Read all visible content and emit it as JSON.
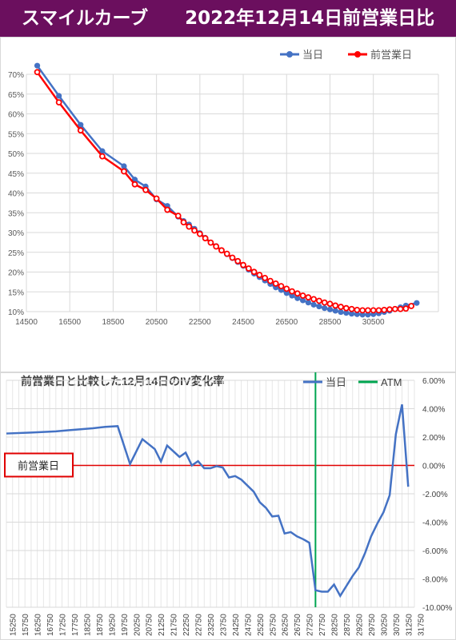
{
  "header": {
    "title": "スマイルカーブ　　2022年12月14日前営業日比",
    "bg_color": "#6b0f5e"
  },
  "chart_data": [
    {
      "type": "line",
      "title": "",
      "legend_position": "top-right",
      "grid": true,
      "xlim": [
        14500,
        33500
      ],
      "ylim": [
        0.15,
        0.7
      ],
      "x_ticks": [
        "14500",
        "16500",
        "18500",
        "20500",
        "22500",
        "24500",
        "26500",
        "28500",
        "30500"
      ],
      "y_ticks": [
        "10%",
        "15%",
        "20%",
        "25%",
        "30%",
        "35%",
        "40%",
        "45%",
        "50%",
        "55%",
        "60%",
        "65%",
        "70%"
      ],
      "series": [
        {
          "name": "当日",
          "color": "#4472c4",
          "points": [
            [
              15000,
              0.72
            ],
            [
              16000,
              0.65
            ],
            [
              17000,
              0.583
            ],
            [
              18000,
              0.522
            ],
            [
              19000,
              0.487
            ],
            [
              19500,
              0.456
            ],
            [
              20000,
              0.44
            ],
            [
              20500,
              0.41
            ],
            [
              21000,
              0.395
            ],
            [
              21500,
              0.37
            ],
            [
              21750,
              0.36
            ],
            [
              22000,
              0.352
            ],
            [
              22250,
              0.342
            ],
            [
              22500,
              0.332
            ],
            [
              22750,
              0.321
            ],
            [
              23000,
              0.31
            ],
            [
              23250,
              0.302
            ],
            [
              23500,
              0.292
            ],
            [
              23750,
              0.283
            ],
            [
              24000,
              0.274
            ],
            [
              24250,
              0.265
            ],
            [
              24500,
              0.256
            ],
            [
              24750,
              0.247
            ],
            [
              25000,
              0.238
            ],
            [
              25250,
              0.23
            ],
            [
              25500,
              0.222
            ],
            [
              25750,
              0.214
            ],
            [
              26000,
              0.206
            ],
            [
              26250,
              0.2
            ],
            [
              26500,
              0.193
            ],
            [
              26750,
              0.187
            ],
            [
              27000,
              0.181
            ],
            [
              27250,
              0.176
            ],
            [
              27500,
              0.171
            ],
            [
              27750,
              0.166
            ],
            [
              28000,
              0.162
            ],
            [
              28250,
              0.158
            ],
            [
              28500,
              0.155
            ],
            [
              28750,
              0.152
            ],
            [
              29000,
              0.149
            ],
            [
              29250,
              0.147
            ],
            [
              29500,
              0.145
            ],
            [
              29750,
              0.144
            ],
            [
              30000,
              0.143
            ],
            [
              30250,
              0.143
            ],
            [
              30500,
              0.144
            ],
            [
              30750,
              0.146
            ],
            [
              31000,
              0.149
            ],
            [
              31250,
              0.152
            ],
            [
              31500,
              0.156
            ],
            [
              31750,
              0.16
            ],
            [
              32000,
              0.164
            ],
            [
              32500,
              0.17
            ]
          ]
        },
        {
          "name": "前営業日",
          "color": "#ff0000",
          "points": [
            [
              15000,
              0.705
            ],
            [
              16000,
              0.635
            ],
            [
              17000,
              0.57
            ],
            [
              18000,
              0.51
            ],
            [
              19000,
              0.475
            ],
            [
              19500,
              0.445
            ],
            [
              20000,
              0.432
            ],
            [
              20500,
              0.412
            ],
            [
              21000,
              0.386
            ],
            [
              21500,
              0.372
            ],
            [
              21750,
              0.357
            ],
            [
              22000,
              0.347
            ],
            [
              22250,
              0.338
            ],
            [
              22500,
              0.33
            ],
            [
              22750,
              0.32
            ],
            [
              23000,
              0.31
            ],
            [
              23250,
              0.301
            ],
            [
              23500,
              0.292
            ],
            [
              23750,
              0.284
            ],
            [
              24000,
              0.275
            ],
            [
              24250,
              0.267
            ],
            [
              24500,
              0.258
            ],
            [
              24750,
              0.25
            ],
            [
              25000,
              0.242
            ],
            [
              25250,
              0.235
            ],
            [
              25500,
              0.228
            ],
            [
              25750,
              0.221
            ],
            [
              26000,
              0.215
            ],
            [
              26250,
              0.209
            ],
            [
              26500,
              0.203
            ],
            [
              26750,
              0.197
            ],
            [
              27000,
              0.192
            ],
            [
              27250,
              0.187
            ],
            [
              27500,
              0.183
            ],
            [
              27750,
              0.179
            ],
            [
              28000,
              0.175
            ],
            [
              28250,
              0.171
            ],
            [
              28500,
              0.168
            ],
            [
              28750,
              0.164
            ],
            [
              29000,
              0.161
            ],
            [
              29250,
              0.158
            ],
            [
              29500,
              0.156
            ],
            [
              29750,
              0.154
            ],
            [
              30000,
              0.153
            ],
            [
              30250,
              0.153
            ],
            [
              30500,
              0.153
            ],
            [
              30750,
              0.153
            ],
            [
              31000,
              0.154
            ],
            [
              31250,
              0.155
            ],
            [
              31500,
              0.156
            ],
            [
              31750,
              0.156
            ],
            [
              32000,
              0.157
            ],
            [
              32250,
              0.163
            ]
          ]
        }
      ]
    },
    {
      "type": "line",
      "title": "前営業日と比較した12月14日のIV変化率",
      "legend_position": "top-right",
      "grid": true,
      "ylim": [
        -0.1,
        0.06
      ],
      "y_ticks": [
        "6.00%",
        "4.00%",
        "2.00%",
        "0.00%",
        "-2.00%",
        "-4.00%",
        "-6.00%",
        "-8.00%",
        "-10.00%"
      ],
      "x_ticks": [
        "15250",
        "15750",
        "16250",
        "16750",
        "17250",
        "17750",
        "18250",
        "18750",
        "19250",
        "19750",
        "20250",
        "20750",
        "21250",
        "21750",
        "22250",
        "22750",
        "23250",
        "23750",
        "24250",
        "24750",
        "25250",
        "25750",
        "26250",
        "26750",
        "27250",
        "27750",
        "28250",
        "28750",
        "29250",
        "29750",
        "30250",
        "30750",
        "31250",
        "31750"
      ],
      "reference_label": "前営業日",
      "series": [
        {
          "name": "当日",
          "color": "#4472c4",
          "points": [
            [
              15000,
              0.0225
            ],
            [
              16000,
              0.0232
            ],
            [
              17000,
              0.024
            ],
            [
              17500,
              0.0248
            ],
            [
              18000,
              0.0255
            ],
            [
              18500,
              0.0262
            ],
            [
              19000,
              0.0272
            ],
            [
              19500,
              0.0277
            ],
            [
              20000,
              0.001
            ],
            [
              20500,
              0.0185
            ],
            [
              21000,
              0.0115
            ],
            [
              21250,
              0.0028
            ],
            [
              21500,
              0.014
            ],
            [
              22000,
              0.006
            ],
            [
              22250,
              0.009
            ],
            [
              22500,
              0.0
            ],
            [
              22750,
              0.003
            ],
            [
              23000,
              -0.002
            ],
            [
              23250,
              -0.002
            ],
            [
              23500,
              -0.0005
            ],
            [
              23750,
              -0.0015
            ],
            [
              24000,
              -0.0085
            ],
            [
              24250,
              -0.0075
            ],
            [
              24500,
              -0.01
            ],
            [
              25000,
              -0.0185
            ],
            [
              25250,
              -0.026
            ],
            [
              25500,
              -0.03
            ],
            [
              25750,
              -0.036
            ],
            [
              26000,
              -0.0355
            ],
            [
              26250,
              -0.048
            ],
            [
              26500,
              -0.047
            ],
            [
              26750,
              -0.05
            ],
            [
              27000,
              -0.052
            ],
            [
              27250,
              -0.0545
            ],
            [
              27500,
              -0.088
            ],
            [
              27750,
              -0.089
            ],
            [
              28000,
              -0.089
            ],
            [
              28250,
              -0.084
            ],
            [
              28500,
              -0.092
            ],
            [
              29000,
              -0.078
            ],
            [
              29250,
              -0.072
            ],
            [
              29500,
              -0.062
            ],
            [
              29750,
              -0.05
            ],
            [
              30000,
              -0.041
            ],
            [
              30250,
              -0.033
            ],
            [
              30500,
              -0.021
            ],
            [
              30750,
              0.022
            ],
            [
              31000,
              0.043
            ],
            [
              31250,
              -0.015
            ]
          ]
        },
        {
          "name": "ATM",
          "color": "#00a550",
          "x": 27500
        }
      ]
    }
  ]
}
